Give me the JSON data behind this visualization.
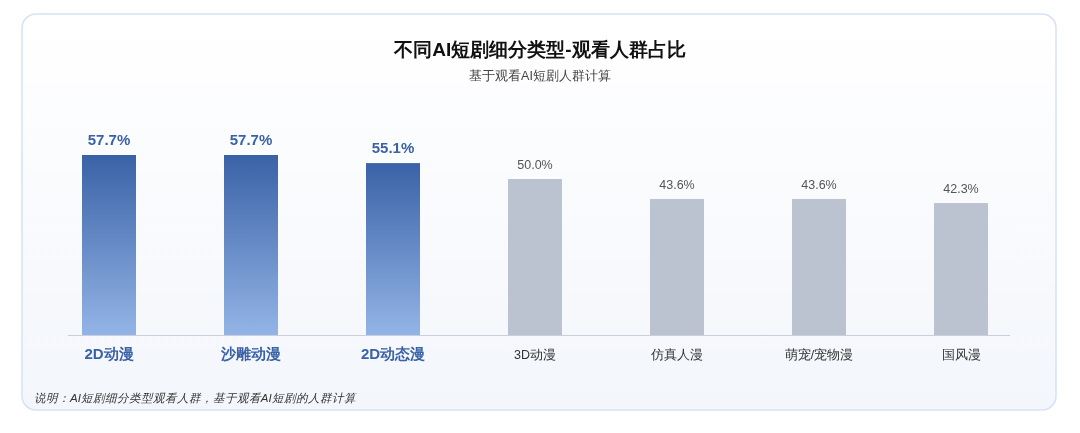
{
  "chart_data": {
    "type": "bar",
    "title": "不同AI短剧细分类型-观看人群占比",
    "subtitle": "基于观看AI短剧人群计算",
    "categories": [
      "2D动漫",
      "沙雕动漫",
      "2D动态漫",
      "3D动漫",
      "仿真人漫",
      "萌宠/宠物漫",
      "国风漫"
    ],
    "values": [
      57.7,
      57.7,
      55.1,
      50.0,
      43.6,
      43.6,
      42.3
    ],
    "value_labels": [
      "57.7%",
      "57.7%",
      "55.1%",
      "50.0%",
      "43.6%",
      "43.6%",
      "42.3%"
    ],
    "colors": [
      "#3a62a6",
      "#3a62a6",
      "#3a62a6",
      "#bcc3d0",
      "#bcc3d0",
      "#bcc3d0",
      "#bcc3d0"
    ],
    "annotations": [
      "说明：AI短剧细分类型观看人群，基于观看AI短剧的人群计算"
    ]
  }
}
